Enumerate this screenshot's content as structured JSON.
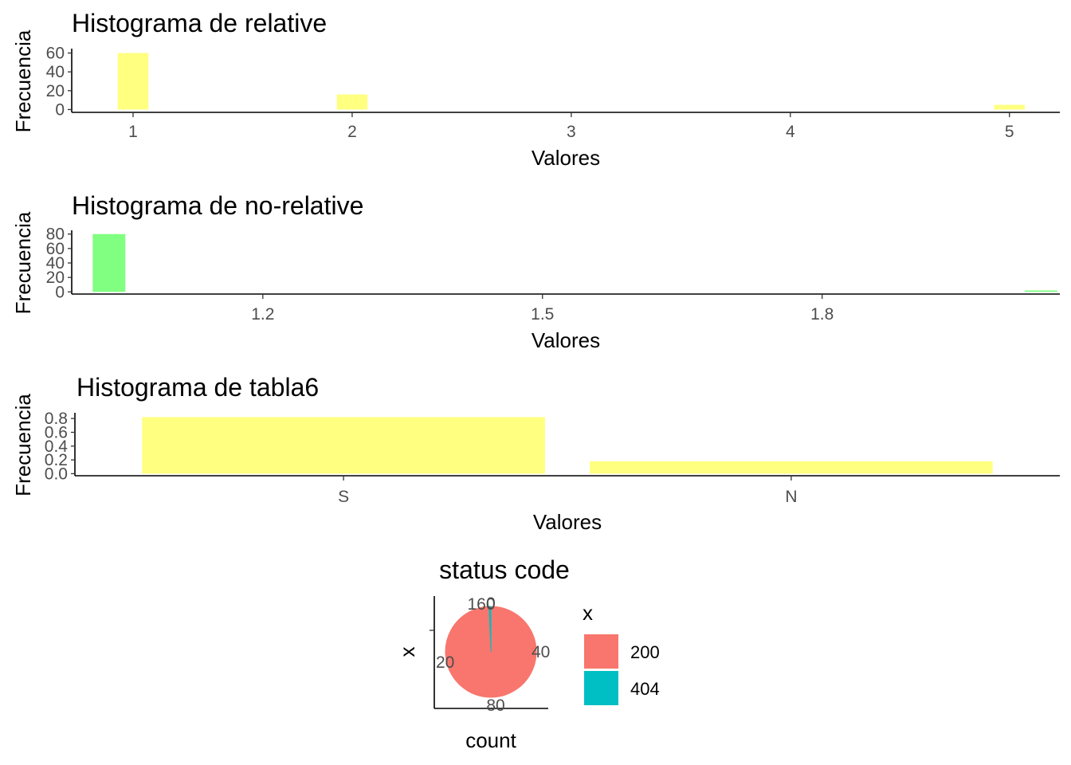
{
  "chart_data": [
    {
      "type": "bar",
      "title": "Histograma de relative",
      "xlabel": "Valores",
      "ylabel": "Frecuencia",
      "bar_color": "#FFFF80",
      "x_ticks": [
        "1",
        "2",
        "3",
        "4",
        "5"
      ],
      "y_ticks": [
        "0",
        "20",
        "40",
        "60"
      ],
      "xlim": [
        0.72,
        5.23
      ],
      "ylim": [
        -3,
        63
      ],
      "bar_width": 0.14,
      "bars": [
        {
          "x": 1,
          "value": 60
        },
        {
          "x": 2,
          "value": 16
        },
        {
          "x": 5,
          "value": 5
        }
      ]
    },
    {
      "type": "bar",
      "title": "Histograma de no-relative",
      "xlabel": "Valores",
      "ylabel": "Frecuencia",
      "bar_color": "#80FF80",
      "x_ticks": [
        "1.2",
        "1.5",
        "1.8"
      ],
      "y_ticks": [
        "0",
        "20",
        "40",
        "60",
        "80"
      ],
      "xlim": [
        0.995,
        2.055
      ],
      "ylim": [
        -3,
        83
      ],
      "bar_width": 0.035,
      "bars": [
        {
          "x": 1.035,
          "value": 80
        },
        {
          "x": 2.035,
          "value": 2
        }
      ]
    },
    {
      "type": "bar",
      "title": "Histograma de tabla6",
      "xlabel": "Valores",
      "ylabel": "Frecuencia",
      "bar_color": "#FFFF80",
      "x_ticks": [
        "S",
        "N"
      ],
      "y_ticks": [
        "0.0",
        "0.2",
        "0.4",
        "0.6",
        "0.8"
      ],
      "ylim": [
        -0.03,
        0.86
      ],
      "bars": [
        {
          "category": "S",
          "value": 0.82
        },
        {
          "category": "N",
          "value": 0.18
        }
      ]
    },
    {
      "type": "pie",
      "title": "status code",
      "xlabel": "count",
      "ylabel": "x",
      "theta_ticks": [
        "0",
        "20",
        "40",
        "80",
        "160"
      ],
      "legend": {
        "title": "x",
        "position": "right"
      },
      "slices": [
        {
          "label": "200",
          "value": 159,
          "color": "#F8766D"
        },
        {
          "label": "404",
          "value": 1,
          "color": "#00BFC4"
        }
      ]
    }
  ]
}
